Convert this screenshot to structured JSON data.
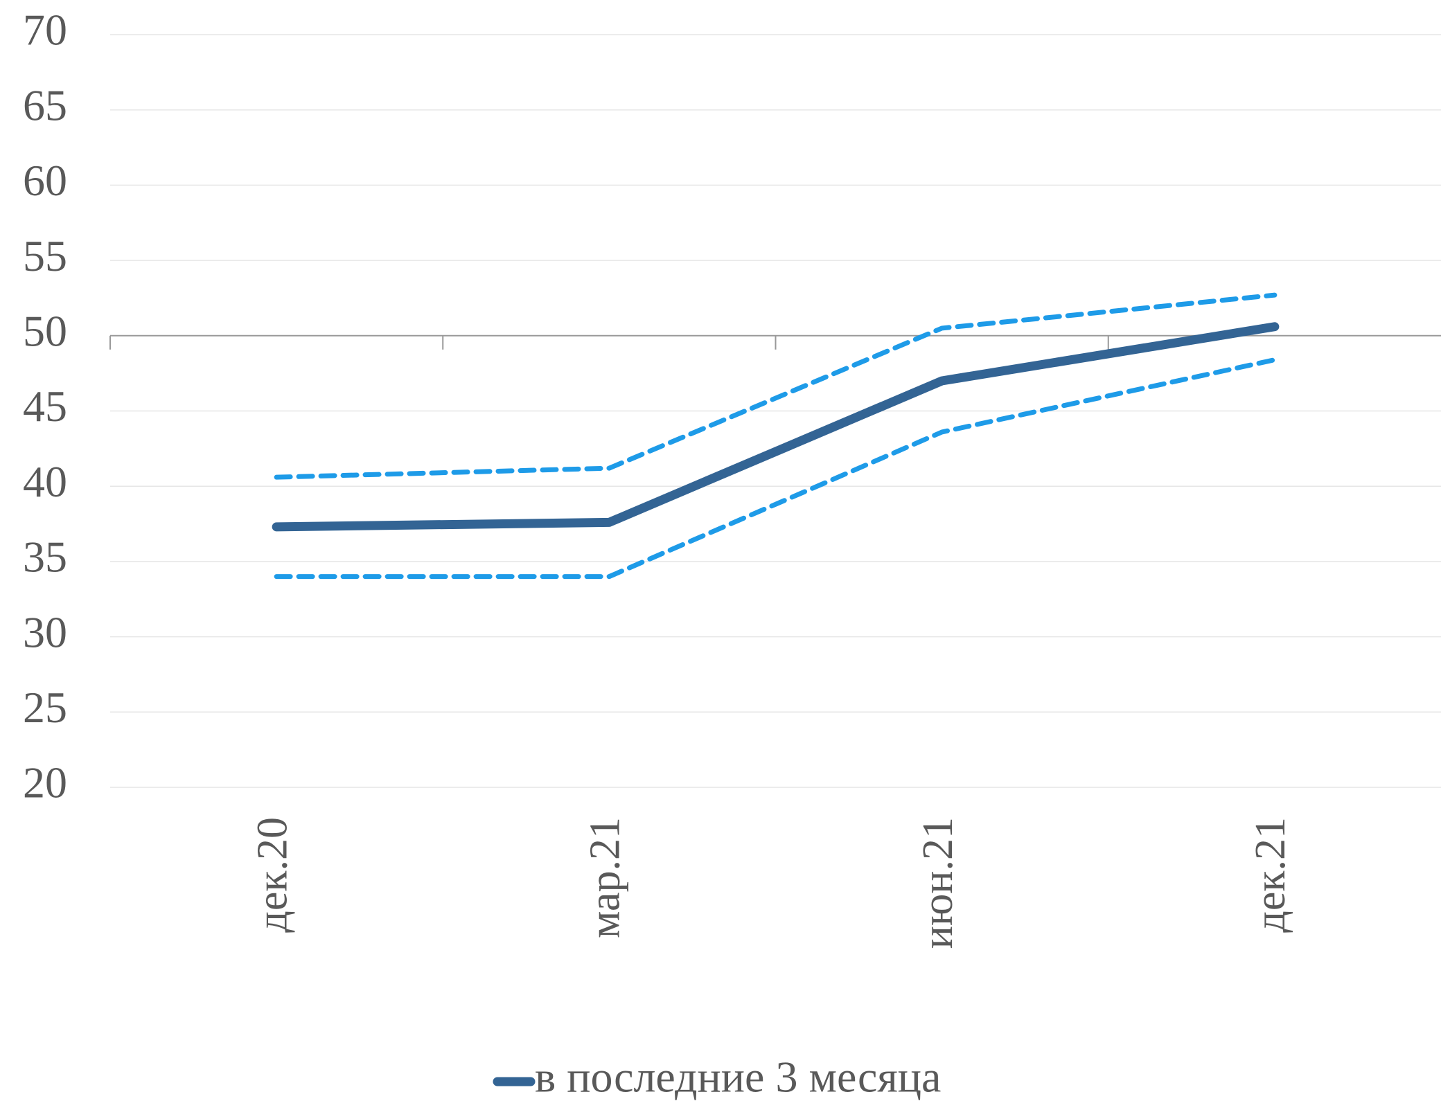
{
  "chart_data": {
    "type": "line",
    "categories": [
      "дек.20",
      "мар.21",
      "июн.21",
      "дек.21"
    ],
    "series": [
      {
        "name": "в последние 3 месяца",
        "color": "#336494",
        "values": [
          37.3,
          37.6,
          47.0,
          50.6
        ]
      },
      {
        "color": "#1e9be8",
        "dashed": true,
        "values": [
          40.6,
          41.2,
          50.5,
          52.7
        ]
      },
      {
        "color": "#1e9be8",
        "dashed": true,
        "values": [
          34.0,
          34.0,
          43.6,
          48.4
        ]
      }
    ],
    "ylim": [
      20,
      70
    ],
    "yticks": [
      20,
      25,
      30,
      35,
      40,
      45,
      50,
      55,
      60,
      65,
      70
    ],
    "x_axis_at": 50,
    "grid": true,
    "legend": "bottom"
  }
}
